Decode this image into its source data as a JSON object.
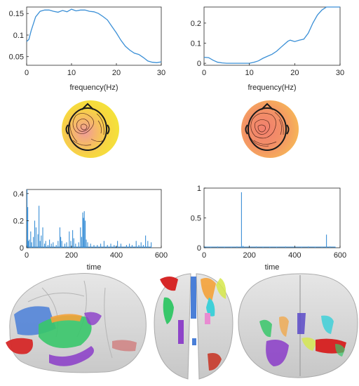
{
  "chart_data": [
    {
      "type": "line",
      "panel": "spectrum-left",
      "xlabel": "frequency(Hz)",
      "xlim": [
        0,
        30
      ],
      "ylim": [
        0.03,
        0.165
      ],
      "xticks": [
        "0",
        "10",
        "20",
        "30"
      ],
      "yticks": [
        "0.05",
        "0.1",
        "0.15"
      ],
      "ytick_values": [
        0.05,
        0.1,
        0.15
      ],
      "xtick_values": [
        0,
        10,
        20,
        30
      ],
      "color": "#3a8fd6",
      "series": [
        {
          "x": [
            0,
            0.5,
            1,
            2,
            3,
            4,
            5,
            6,
            7,
            8,
            9,
            10,
            11,
            12,
            13,
            14,
            15,
            16,
            17,
            18,
            19,
            20,
            21,
            22,
            23,
            24,
            25,
            26,
            27,
            28,
            29,
            30
          ],
          "y": [
            0.085,
            0.09,
            0.11,
            0.142,
            0.155,
            0.158,
            0.158,
            0.155,
            0.153,
            0.157,
            0.154,
            0.16,
            0.156,
            0.158,
            0.158,
            0.155,
            0.154,
            0.15,
            0.143,
            0.135,
            0.12,
            0.105,
            0.088,
            0.074,
            0.065,
            0.058,
            0.055,
            0.048,
            0.04,
            0.037,
            0.036,
            0.038
          ]
        }
      ]
    },
    {
      "type": "line",
      "panel": "spectrum-right",
      "xlabel": "frequency(Hz)",
      "xlim": [
        0,
        30
      ],
      "ylim": [
        -0.01,
        0.28
      ],
      "xticks": [
        "0",
        "10",
        "20",
        "30"
      ],
      "yticks": [
        "0",
        "0.1",
        "0.2"
      ],
      "ytick_values": [
        0,
        0.1,
        0.2
      ],
      "xtick_values": [
        0,
        10,
        20,
        30
      ],
      "color": "#3a8fd6",
      "series": [
        {
          "x": [
            0,
            1,
            2,
            3,
            4,
            5,
            6,
            7,
            8,
            9,
            10,
            11,
            12,
            13,
            14,
            15,
            16,
            17,
            18,
            18.5,
            19,
            20,
            21,
            22,
            23,
            24,
            25,
            26,
            27,
            28,
            29,
            30
          ],
          "y": [
            0.03,
            0.028,
            0.015,
            0.005,
            0.002,
            0.0,
            0.0,
            0.0,
            0.0,
            0.0,
            0.0,
            0.005,
            0.012,
            0.025,
            0.035,
            0.045,
            0.06,
            0.08,
            0.1,
            0.11,
            0.115,
            0.108,
            0.115,
            0.12,
            0.15,
            0.2,
            0.24,
            0.265,
            0.28,
            0.28,
            0.28,
            0.28
          ]
        }
      ]
    },
    {
      "type": "line",
      "panel": "time-left",
      "xlabel": "time",
      "xlim": [
        0,
        600
      ],
      "ylim": [
        0,
        0.43
      ],
      "xticks": [
        "0",
        "200",
        "400",
        "600"
      ],
      "yticks": [
        "0",
        "0.2",
        "0.4"
      ],
      "ytick_values": [
        0,
        0.2,
        0.4
      ],
      "xtick_values": [
        0,
        200,
        400,
        600
      ],
      "color": "#3a8fd6",
      "spikes": [
        [
          2,
          0.43
        ],
        [
          5,
          0.3
        ],
        [
          8,
          0.05
        ],
        [
          12,
          0.06
        ],
        [
          18,
          0.12
        ],
        [
          22,
          0.04
        ],
        [
          30,
          0.08
        ],
        [
          36,
          0.2
        ],
        [
          42,
          0.15
        ],
        [
          50,
          0.1
        ],
        [
          55,
          0.31
        ],
        [
          60,
          0.05
        ],
        [
          65,
          0.09
        ],
        [
          72,
          0.15
        ],
        [
          80,
          0.03
        ],
        [
          85,
          0.05
        ],
        [
          95,
          0.02
        ],
        [
          102,
          0.06
        ],
        [
          110,
          0.03
        ],
        [
          118,
          0.04
        ],
        [
          132,
          0.02
        ],
        [
          140,
          0.05
        ],
        [
          148,
          0.15
        ],
        [
          152,
          0.08
        ],
        [
          157,
          0.05
        ],
        [
          170,
          0.03
        ],
        [
          178,
          0.04
        ],
        [
          190,
          0.12
        ],
        [
          197,
          0.05
        ],
        [
          205,
          0.13
        ],
        [
          210,
          0.07
        ],
        [
          218,
          0.03
        ],
        [
          232,
          0.04
        ],
        [
          240,
          0.15
        ],
        [
          245,
          0.08
        ],
        [
          250,
          0.26
        ],
        [
          253,
          0.22
        ],
        [
          257,
          0.27
        ],
        [
          261,
          0.2
        ],
        [
          266,
          0.06
        ],
        [
          272,
          0.04
        ],
        [
          285,
          0.03
        ],
        [
          300,
          0.02
        ],
        [
          315,
          0.02
        ],
        [
          330,
          0.03
        ],
        [
          345,
          0.05
        ],
        [
          360,
          0.02
        ],
        [
          375,
          0.03
        ],
        [
          390,
          0.02
        ],
        [
          405,
          0.05
        ],
        [
          420,
          0.03
        ],
        [
          445,
          0.02
        ],
        [
          458,
          0.03
        ],
        [
          470,
          0.02
        ],
        [
          488,
          0.05
        ],
        [
          500,
          0.02
        ],
        [
          510,
          0.04
        ],
        [
          520,
          0.02
        ],
        [
          530,
          0.09
        ],
        [
          540,
          0.05
        ],
        [
          555,
          0.04
        ]
      ]
    },
    {
      "type": "line",
      "panel": "time-right",
      "xlabel": "time",
      "xlim": [
        0,
        600
      ],
      "ylim": [
        0,
        1
      ],
      "xticks": [
        "0",
        "200",
        "400",
        "600"
      ],
      "yticks": [
        "0",
        "0.5",
        "1"
      ],
      "ytick_values": [
        0,
        0.5,
        1
      ],
      "xtick_values": [
        0,
        200,
        400,
        600
      ],
      "color": "#3a8fd6",
      "spikes": [
        [
          5,
          0.02
        ],
        [
          30,
          0.01
        ],
        [
          60,
          0.02
        ],
        [
          90,
          0.01
        ],
        [
          120,
          0.015
        ],
        [
          145,
          0.02
        ],
        [
          165,
          0.93
        ],
        [
          172,
          0.03
        ],
        [
          200,
          0.015
        ],
        [
          230,
          0.02
        ],
        [
          260,
          0.01
        ],
        [
          290,
          0.015
        ],
        [
          320,
          0.01
        ],
        [
          360,
          0.02
        ],
        [
          400,
          0.015
        ],
        [
          430,
          0.01
        ],
        [
          460,
          0.02
        ],
        [
          490,
          0.015
        ],
        [
          520,
          0.01
        ],
        [
          540,
          0.22
        ],
        [
          555,
          0.02
        ],
        [
          580,
          0.01
        ]
      ]
    }
  ],
  "topomaps": [
    {
      "name": "left",
      "bg": "#f6d12a",
      "center": "#f2a3a0"
    },
    {
      "name": "right",
      "bg": "#f6a060",
      "center": "#f08070"
    }
  ],
  "brain_regions_colors": [
    "#d62828",
    "#4a7fd8",
    "#38c76a",
    "#8e44c9",
    "#f4a23a",
    "#3fd0d8",
    "#e88bd1",
    "#d6e84a"
  ]
}
